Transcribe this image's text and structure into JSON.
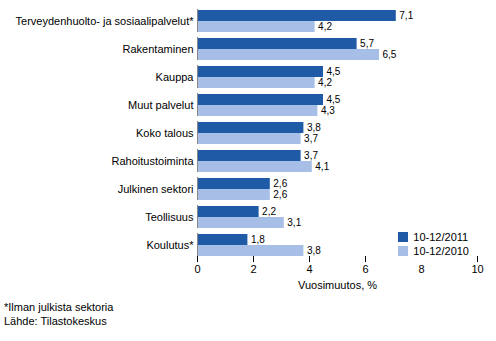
{
  "chart_data": {
    "type": "bar",
    "orientation": "horizontal",
    "categories": [
      "Terveydenhuolto- ja sosiaalipalvelut*",
      "Rakentaminen",
      "Kauppa",
      "Muut palvelut",
      "Koko talous",
      "Rahoitustoiminta",
      "Julkinen sektori",
      "Teollisuus",
      "Koulutus*"
    ],
    "series": [
      {
        "name": "10-12/2011",
        "color": "#1f5aa6",
        "values": [
          7.1,
          5.7,
          4.5,
          4.5,
          3.8,
          3.7,
          2.6,
          2.2,
          1.8
        ],
        "value_labels": [
          "7,1",
          "5,7",
          "4,5",
          "4,5",
          "3,8",
          "3,7",
          "2,6",
          "2,2",
          "1,8"
        ]
      },
      {
        "name": "10-12/2010",
        "color": "#a7bfe6",
        "values": [
          4.2,
          6.5,
          4.2,
          4.3,
          3.7,
          4.1,
          2.6,
          3.1,
          3.8
        ],
        "value_labels": [
          "4,2",
          "6,5",
          "4,2",
          "4,3",
          "3,7",
          "4,1",
          "2,6",
          "3,1",
          "3,8"
        ]
      }
    ],
    "x_label": "Vuosimuutos, %",
    "xlim": [
      0,
      10
    ],
    "xticks": [
      0,
      2,
      4,
      6,
      8,
      10
    ],
    "grid": false,
    "legend": "lower right",
    "data_labels": true,
    "annotations": [
      "*Ilman julkista sektoria",
      "Lähde: Tilastokeskus"
    ]
  }
}
